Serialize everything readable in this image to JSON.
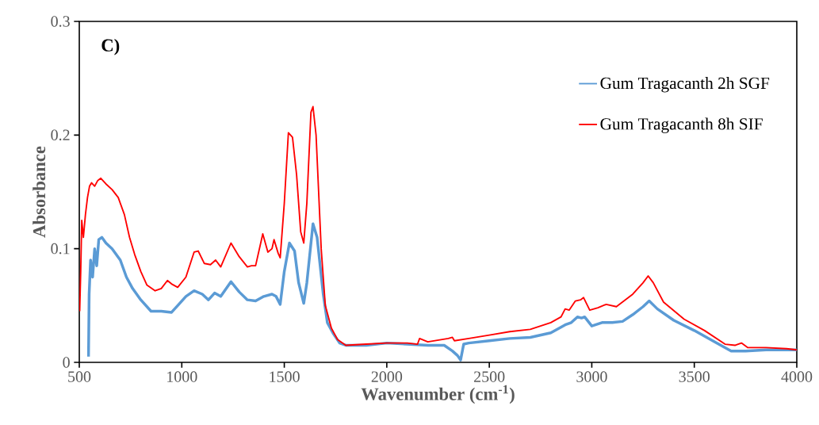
{
  "chart_data": {
    "type": "line",
    "xlabel": "Wavenumber (cm$^{-1}$)",
    "ylabel": "Absorbance",
    "annotations": [
      "C)"
    ],
    "xlim": [
      500,
      4000
    ],
    "ylim": [
      0,
      0.3
    ],
    "xticks": [
      500,
      1000,
      1500,
      2000,
      2500,
      3000,
      3500,
      4000
    ],
    "yticks": [
      0,
      0.1,
      0.2,
      0.3
    ],
    "grid": false,
    "legend": "top right",
    "marker": "none",
    "line_style": "solid",
    "series": [
      {
        "name": "Gum Tragacanth 2h SGF",
        "color": "#5b9bd5",
        "x": [
          545,
          548,
          555,
          565,
          575,
          585,
          595,
          610,
          630,
          660,
          700,
          730,
          760,
          800,
          850,
          900,
          950,
          980,
          1020,
          1060,
          1100,
          1130,
          1160,
          1190,
          1240,
          1280,
          1320,
          1360,
          1400,
          1440,
          1460,
          1480,
          1500,
          1525,
          1550,
          1570,
          1595,
          1610,
          1640,
          1660,
          1690,
          1710,
          1740,
          1770,
          1800,
          1900,
          2000,
          2100,
          2200,
          2280,
          2320,
          2345,
          2360,
          2375,
          2400,
          2500,
          2600,
          2700,
          2800,
          2870,
          2900,
          2930,
          2950,
          2965,
          3000,
          3050,
          3100,
          3150,
          3200,
          3250,
          3280,
          3320,
          3400,
          3500,
          3600,
          3680,
          3750,
          3850,
          4000
        ],
        "values": [
          0.005,
          0.06,
          0.09,
          0.075,
          0.1,
          0.085,
          0.108,
          0.11,
          0.105,
          0.1,
          0.09,
          0.075,
          0.065,
          0.055,
          0.045,
          0.045,
          0.044,
          0.05,
          0.058,
          0.063,
          0.06,
          0.055,
          0.061,
          0.058,
          0.071,
          0.062,
          0.055,
          0.054,
          0.058,
          0.06,
          0.058,
          0.051,
          0.08,
          0.105,
          0.098,
          0.07,
          0.052,
          0.07,
          0.122,
          0.11,
          0.06,
          0.035,
          0.025,
          0.017,
          0.015,
          0.015,
          0.017,
          0.016,
          0.015,
          0.015,
          0.01,
          0.006,
          0.002,
          0.016,
          0.017,
          0.019,
          0.021,
          0.022,
          0.026,
          0.033,
          0.035,
          0.04,
          0.039,
          0.04,
          0.032,
          0.035,
          0.035,
          0.036,
          0.042,
          0.049,
          0.054,
          0.047,
          0.037,
          0.028,
          0.018,
          0.01,
          0.01,
          0.011,
          0.011
        ]
      },
      {
        "name": "Gum Tragacanth 8h SIF",
        "color": "#ff0000",
        "x": [
          502,
          507,
          512,
          520,
          530,
          540,
          550,
          560,
          575,
          590,
          605,
          630,
          660,
          690,
          720,
          745,
          770,
          800,
          830,
          870,
          900,
          930,
          950,
          980,
          1020,
          1060,
          1080,
          1110,
          1140,
          1165,
          1190,
          1240,
          1280,
          1320,
          1340,
          1360,
          1395,
          1420,
          1440,
          1450,
          1470,
          1480,
          1500,
          1520,
          1540,
          1560,
          1580,
          1595,
          1610,
          1630,
          1640,
          1655,
          1680,
          1700,
          1730,
          1760,
          1800,
          1900,
          2000,
          2100,
          2150,
          2160,
          2200,
          2300,
          2320,
          2330,
          2400,
          2500,
          2600,
          2700,
          2800,
          2850,
          2870,
          2890,
          2920,
          2945,
          2960,
          2990,
          3030,
          3070,
          3120,
          3200,
          3250,
          3275,
          3300,
          3350,
          3450,
          3550,
          3650,
          3700,
          3730,
          3760,
          3850,
          3950,
          4000
        ],
        "values": [
          0.045,
          0.08,
          0.125,
          0.11,
          0.13,
          0.145,
          0.155,
          0.158,
          0.155,
          0.16,
          0.162,
          0.157,
          0.152,
          0.145,
          0.13,
          0.11,
          0.095,
          0.08,
          0.068,
          0.063,
          0.065,
          0.072,
          0.069,
          0.066,
          0.075,
          0.097,
          0.098,
          0.087,
          0.086,
          0.09,
          0.084,
          0.105,
          0.093,
          0.084,
          0.085,
          0.085,
          0.113,
          0.097,
          0.1,
          0.108,
          0.096,
          0.092,
          0.14,
          0.202,
          0.198,
          0.165,
          0.115,
          0.105,
          0.14,
          0.22,
          0.225,
          0.2,
          0.1,
          0.05,
          0.03,
          0.02,
          0.015,
          0.016,
          0.017,
          0.017,
          0.016,
          0.021,
          0.018,
          0.021,
          0.022,
          0.019,
          0.021,
          0.024,
          0.027,
          0.029,
          0.035,
          0.04,
          0.047,
          0.046,
          0.054,
          0.055,
          0.057,
          0.046,
          0.048,
          0.051,
          0.049,
          0.06,
          0.07,
          0.076,
          0.07,
          0.053,
          0.038,
          0.028,
          0.016,
          0.015,
          0.017,
          0.013,
          0.013,
          0.012,
          0.011
        ]
      }
    ]
  }
}
